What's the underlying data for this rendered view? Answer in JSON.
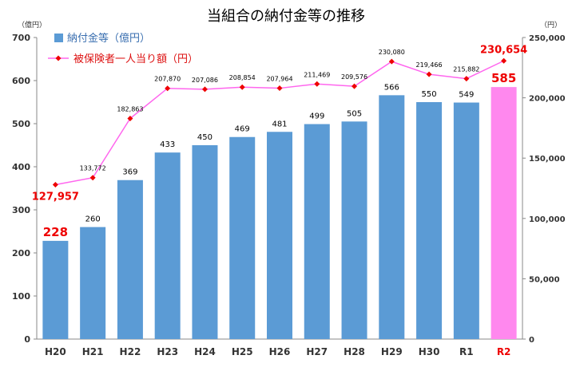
{
  "chart_data": {
    "type": "bar",
    "title": "当組合の納付金等の推移",
    "y_left_unit": "（億円）",
    "y_right_unit": "（円）",
    "categories": [
      "H20",
      "H21",
      "H22",
      "H23",
      "H24",
      "H25",
      "H26",
      "H27",
      "H28",
      "H29",
      "H30",
      "R1",
      "R2"
    ],
    "series": [
      {
        "name": "納付金等（億円）",
        "kind": "bar",
        "axis": "left",
        "color": "#5b9bd5",
        "highlight_color": "#ff88ee",
        "values": [
          228,
          260,
          369,
          433,
          450,
          469,
          481,
          499,
          505,
          566,
          550,
          549,
          585
        ]
      },
      {
        "name": "被保険者一人当り額（円）",
        "kind": "line",
        "axis": "right",
        "color": "#ff66ee",
        "marker_color": "#ee0000",
        "values": [
          127957,
          133772,
          182863,
          207870,
          207086,
          208854,
          207964,
          211469,
          209576,
          230080,
          219466,
          215882,
          230654
        ]
      }
    ],
    "bar_labels": [
      "228",
      "260",
      "369",
      "433",
      "450",
      "469",
      "481",
      "499",
      "505",
      "566",
      "550",
      "549",
      "585"
    ],
    "line_labels": [
      "127,957",
      "133,772",
      "182,863",
      "207,870",
      "207,086",
      "208,854",
      "207,964",
      "211,469",
      "209,576",
      "230,080",
      "219,466",
      "215,882",
      "230,654"
    ],
    "highlight_labels": [
      0,
      12
    ],
    "highlight_category": 12,
    "y_left": {
      "min": 0,
      "max": 700,
      "ticks": [
        "0",
        "100",
        "200",
        "300",
        "400",
        "500",
        "600",
        "700"
      ]
    },
    "y_right": {
      "min": 0,
      "max": 250000,
      "ticks": [
        "0",
        "50,000",
        "100,000",
        "150,000",
        "200,000",
        "250,000"
      ]
    },
    "legend_position": "top-left",
    "grid": false
  }
}
